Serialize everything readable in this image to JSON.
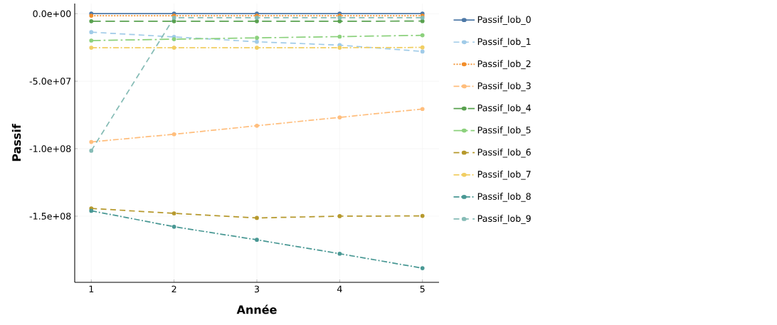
{
  "chart_data": {
    "type": "line",
    "xlabel": "Année",
    "ylabel": "Passif",
    "x": [
      1,
      2,
      3,
      4,
      5
    ],
    "xlim": [
      0.8,
      5.2
    ],
    "xticks": [
      1,
      2,
      3,
      4,
      5
    ],
    "ylim": [
      -199000000,
      7500000
    ],
    "yticks": [
      {
        "value": 0,
        "label": "0.0e+00"
      },
      {
        "value": -50000000,
        "label": "-5.0e+07"
      },
      {
        "value": -100000000,
        "label": "-1.0e+08"
      },
      {
        "value": -150000000,
        "label": "-1.5e+08"
      }
    ],
    "grid": true,
    "legend": "right",
    "marker": "circle",
    "series": [
      {
        "name": "Passif_lob_0",
        "color": "#4e79a7",
        "line_style": "solid",
        "values": [
          0,
          0,
          0,
          0,
          0
        ]
      },
      {
        "name": "Passif_lob_1",
        "color": "#a0cbe8",
        "line_style": "dashed",
        "values": [
          -13700000,
          -17200000,
          -20800000,
          -23300000,
          -28000000
        ]
      },
      {
        "name": "Passif_lob_2",
        "color": "#f28e2b",
        "line_style": "dotted",
        "values": [
          -1500000,
          -1500000,
          -1500000,
          -1500000,
          -1500000
        ]
      },
      {
        "name": "Passif_lob_3",
        "color": "#ffbe7d",
        "line_style": "dashdot",
        "values": [
          -95000000,
          -89300000,
          -83000000,
          -76800000,
          -70600000
        ]
      },
      {
        "name": "Passif_lob_4",
        "color": "#59a14f",
        "line_style": "longdash",
        "values": [
          -5600000,
          -5600000,
          -5600000,
          -5600000,
          -5500000
        ]
      },
      {
        "name": "Passif_lob_5",
        "color": "#8cd17d",
        "line_style": "longdashdot",
        "values": [
          -19900000,
          -18900000,
          -17900000,
          -17000000,
          -16000000
        ]
      },
      {
        "name": "Passif_lob_6",
        "color": "#b6992d",
        "line_style": "dashed",
        "values": [
          -144300000,
          -147900000,
          -151300000,
          -150000000,
          -149800000
        ]
      },
      {
        "name": "Passif_lob_7",
        "color": "#f1ce63",
        "line_style": "dashdot",
        "values": [
          -25200000,
          -25200000,
          -25200000,
          -25200000,
          -25000000
        ]
      },
      {
        "name": "Passif_lob_8",
        "color": "#499894",
        "line_style": "dashdot",
        "values": [
          -146000000,
          -157800000,
          -167500000,
          -177800000,
          -188500000
        ]
      },
      {
        "name": "Passif_lob_9",
        "color": "#86bcb6",
        "line_style": "dashed",
        "values": [
          -101500000,
          -3000000,
          -3000000,
          -3000000,
          -3000000
        ]
      }
    ]
  }
}
